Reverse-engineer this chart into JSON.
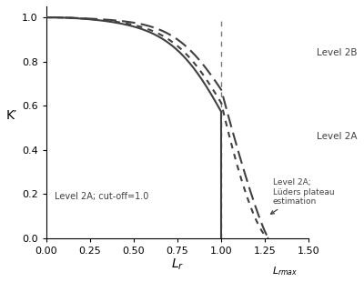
{
  "title": "",
  "xlabel": "L_r",
  "ylabel": "K′",
  "xlim": [
    0.0,
    1.5
  ],
  "ylim": [
    0.0,
    1.05
  ],
  "xticks": [
    0.0,
    0.25,
    0.5,
    0.75,
    1.0,
    1.25,
    1.5
  ],
  "yticks": [
    0.0,
    0.2,
    0.4,
    0.6,
    0.8,
    1.0
  ],
  "Lrmax": 1.27,
  "Lr_cutoff": 1.0,
  "annotation_cutoff": "Level 2A; cut-off=1.0",
  "annotation_2B": "Level 2B",
  "annotation_2A": "Level 2A",
  "annotation_luders": "Level 2A;\nLüders plateau\nestimation",
  "color": "#404040",
  "background": "#ffffff"
}
